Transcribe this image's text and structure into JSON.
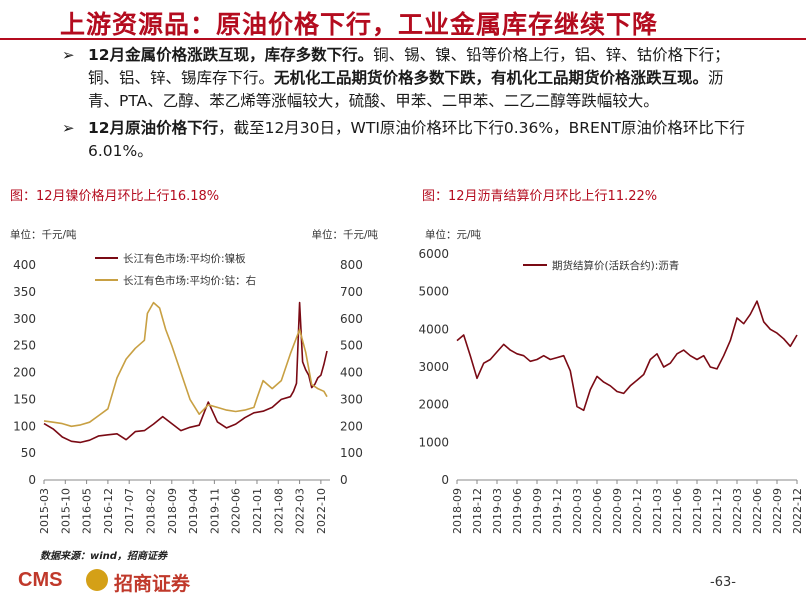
{
  "header": {
    "title": "上游资源品：原油价格下行，工业金属库存继续下降"
  },
  "bullets": [
    {
      "bold1": "12月金属价格涨跌互现，库存多数下行。",
      "normal1": "铜、锡、镍、铅等价格上行，铝、锌、钴价格下行；铜、铝、锌、锡库存下行。",
      "bold2": "无机化工品期货价格多数下跌，有机化工品期货价格涨跌互现。",
      "normal2": "沥青、PTA、乙醇、苯乙烯等涨幅较大，硫酸、甲苯、二甲苯、二乙二醇等跌幅较大。"
    },
    {
      "bold1": "12月原油价格下行",
      "normal1": "，截至12月30日，WTI原油价格环比下行0.36%，BRENT原油价格环比下行6.01%。"
    }
  ],
  "footer": {
    "source": "数据来源：wind，招商证券",
    "logo_cms": "CMS",
    "logo_name": "招商证券",
    "page": "-63-"
  },
  "chart_data": [
    {
      "type": "line",
      "title": "图：12月镍价格月环比上行16.18%",
      "ylabel_left": "单位：千元/吨",
      "ylabel_right": "单位：千元/吨",
      "ylim_left": [
        0,
        400
      ],
      "ylim_right": [
        0,
        800
      ],
      "yticks_left": [
        0,
        50,
        100,
        150,
        200,
        250,
        300,
        350,
        400
      ],
      "yticks_right": [
        0,
        100,
        200,
        300,
        400,
        500,
        600,
        700,
        800
      ],
      "xticks": [
        "2015-03",
        "2015-10",
        "2016-05",
        "2016-12",
        "2017-07",
        "2018-02",
        "2018-09",
        "2019-04",
        "2019-11",
        "2020-06",
        "2021-01",
        "2021-08",
        "2022-03",
        "2022-10"
      ],
      "x_range": [
        "2015-03",
        "2023-01"
      ],
      "legend_position": "top-left",
      "series": [
        {
          "name": "长江有色市场:平均价:镍板",
          "axis": "left",
          "color": "#7a0a14",
          "points": [
            [
              "2015-03",
              105
            ],
            [
              "2015-06",
              95
            ],
            [
              "2015-09",
              80
            ],
            [
              "2015-12",
              72
            ],
            [
              "2016-03",
              70
            ],
            [
              "2016-06",
              74
            ],
            [
              "2016-09",
              82
            ],
            [
              "2016-12",
              84
            ],
            [
              "2017-03",
              86
            ],
            [
              "2017-06",
              75
            ],
            [
              "2017-09",
              90
            ],
            [
              "2017-12",
              92
            ],
            [
              "2018-03",
              104
            ],
            [
              "2018-06",
              118
            ],
            [
              "2018-09",
              105
            ],
            [
              "2018-12",
              92
            ],
            [
              "2019-03",
              98
            ],
            [
              "2019-06",
              102
            ],
            [
              "2019-09",
              145
            ],
            [
              "2019-12",
              108
            ],
            [
              "2020-03",
              97
            ],
            [
              "2020-06",
              104
            ],
            [
              "2020-09",
              116
            ],
            [
              "2020-12",
              125
            ],
            [
              "2021-03",
              128
            ],
            [
              "2021-06",
              135
            ],
            [
              "2021-09",
              150
            ],
            [
              "2021-12",
              155
            ],
            [
              "2022-01",
              165
            ],
            [
              "2022-02",
              180
            ],
            [
              "2022-03",
              330
            ],
            [
              "2022-04",
              220
            ],
            [
              "2022-05",
              205
            ],
            [
              "2022-06",
              195
            ],
            [
              "2022-07",
              172
            ],
            [
              "2022-08",
              178
            ],
            [
              "2022-09",
              190
            ],
            [
              "2022-10",
              195
            ],
            [
              "2022-11",
              215
            ],
            [
              "2022-12",
              240
            ]
          ]
        },
        {
          "name": "长江有色市场:平均价:钴：右",
          "axis": "right",
          "color": "#c8a043",
          "points": [
            [
              "2015-03",
              220
            ],
            [
              "2015-06",
              215
            ],
            [
              "2015-09",
              210
            ],
            [
              "2015-12",
              200
            ],
            [
              "2016-03",
              205
            ],
            [
              "2016-06",
              215
            ],
            [
              "2016-09",
              240
            ],
            [
              "2016-12",
              265
            ],
            [
              "2017-03",
              380
            ],
            [
              "2017-06",
              450
            ],
            [
              "2017-09",
              490
            ],
            [
              "2017-12",
              520
            ],
            [
              "2018-01",
              620
            ],
            [
              "2018-03",
              660
            ],
            [
              "2018-05",
              640
            ],
            [
              "2018-07",
              560
            ],
            [
              "2018-09",
              500
            ],
            [
              "2018-12",
              400
            ],
            [
              "2019-03",
              300
            ],
            [
              "2019-06",
              245
            ],
            [
              "2019-09",
              280
            ],
            [
              "2019-12",
              270
            ],
            [
              "2020-03",
              260
            ],
            [
              "2020-06",
              255
            ],
            [
              "2020-09",
              260
            ],
            [
              "2020-12",
              270
            ],
            [
              "2021-01",
              305
            ],
            [
              "2021-03",
              370
            ],
            [
              "2021-06",
              340
            ],
            [
              "2021-09",
              370
            ],
            [
              "2021-12",
              470
            ],
            [
              "2022-03",
              560
            ],
            [
              "2022-05",
              475
            ],
            [
              "2022-07",
              355
            ],
            [
              "2022-09",
              340
            ],
            [
              "2022-11",
              330
            ],
            [
              "2022-12",
              310
            ]
          ]
        }
      ]
    },
    {
      "type": "line",
      "title": "图：12月沥青结算价月环比上行11.22%",
      "ylabel": "单位：元/吨",
      "ylim": [
        0,
        6000
      ],
      "yticks": [
        0,
        1000,
        2000,
        3000,
        4000,
        5000,
        6000
      ],
      "xticks": [
        "2018-09",
        "2018-12",
        "2019-03",
        "2019-06",
        "2019-09",
        "2019-12",
        "2020-03",
        "2020-06",
        "2020-09",
        "2020-12",
        "2021-03",
        "2021-06",
        "2021-09",
        "2021-12",
        "2022-03",
        "2022-06",
        "2022-09",
        "2022-12"
      ],
      "x_range": [
        "2018-09",
        "2022-12"
      ],
      "legend_position": "top-left",
      "series": [
        {
          "name": "期货结算价(活跃合约):沥青",
          "color": "#7a0a14",
          "points": [
            [
              "2018-09",
              3700
            ],
            [
              "2018-10",
              3850
            ],
            [
              "2018-11",
              3300
            ],
            [
              "2018-12",
              2700
            ],
            [
              "2019-01",
              3100
            ],
            [
              "2019-02",
              3200
            ],
            [
              "2019-03",
              3400
            ],
            [
              "2019-04",
              3600
            ],
            [
              "2019-05",
              3450
            ],
            [
              "2019-06",
              3350
            ],
            [
              "2019-07",
              3300
            ],
            [
              "2019-08",
              3150
            ],
            [
              "2019-09",
              3200
            ],
            [
              "2019-10",
              3300
            ],
            [
              "2019-11",
              3200
            ],
            [
              "2019-12",
              3250
            ],
            [
              "2020-01",
              3300
            ],
            [
              "2020-02",
              2900
            ],
            [
              "2020-03",
              1950
            ],
            [
              "2020-04",
              1850
            ],
            [
              "2020-05",
              2400
            ],
            [
              "2020-06",
              2750
            ],
            [
              "2020-07",
              2600
            ],
            [
              "2020-08",
              2500
            ],
            [
              "2020-09",
              2350
            ],
            [
              "2020-10",
              2300
            ],
            [
              "2020-11",
              2500
            ],
            [
              "2020-12",
              2650
            ],
            [
              "2021-01",
              2800
            ],
            [
              "2021-02",
              3200
            ],
            [
              "2021-03",
              3350
            ],
            [
              "2021-04",
              3000
            ],
            [
              "2021-05",
              3100
            ],
            [
              "2021-06",
              3350
            ],
            [
              "2021-07",
              3450
            ],
            [
              "2021-08",
              3300
            ],
            [
              "2021-09",
              3200
            ],
            [
              "2021-10",
              3300
            ],
            [
              "2021-11",
              3000
            ],
            [
              "2021-12",
              2950
            ],
            [
              "2022-01",
              3300
            ],
            [
              "2022-02",
              3700
            ],
            [
              "2022-03",
              4300
            ],
            [
              "2022-04",
              4150
            ],
            [
              "2022-05",
              4400
            ],
            [
              "2022-06",
              4750
            ],
            [
              "2022-07",
              4200
            ],
            [
              "2022-08",
              4000
            ],
            [
              "2022-09",
              3900
            ],
            [
              "2022-10",
              3750
            ],
            [
              "2022-11",
              3550
            ],
            [
              "2022-12",
              3850
            ]
          ]
        }
      ]
    }
  ]
}
